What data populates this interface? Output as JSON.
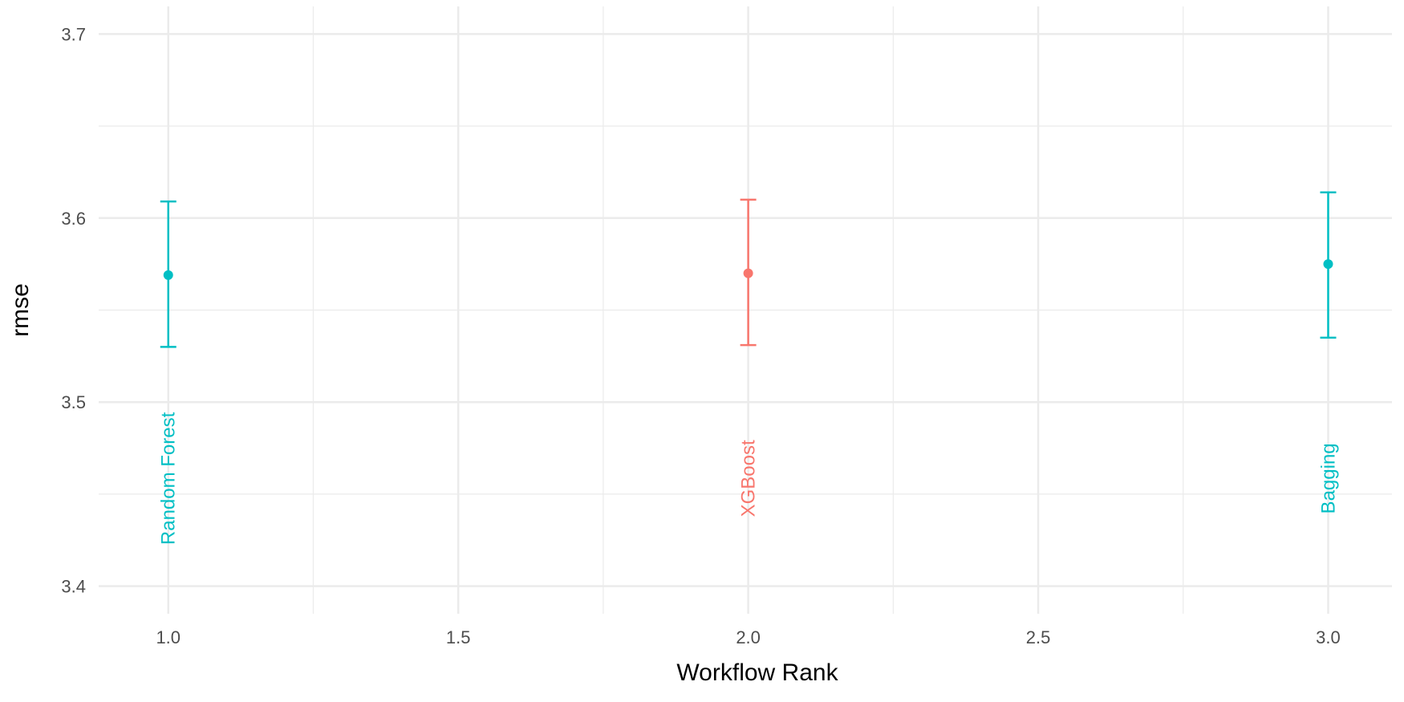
{
  "chart_data": {
    "type": "scatter",
    "xlabel": "Workflow Rank",
    "ylabel": "rmse",
    "xlim": [
      0.88,
      3.11
    ],
    "ylim": [
      3.385,
      3.715
    ],
    "x_ticks": [
      1.0,
      1.5,
      2.0,
      2.5,
      3.0
    ],
    "x_tick_labels": [
      "1.0",
      "1.5",
      "2.0",
      "2.5",
      "3.0"
    ],
    "y_ticks": [
      3.4,
      3.5,
      3.6,
      3.7
    ],
    "y_tick_labels": [
      "3.4",
      "3.5",
      "3.6",
      "3.7"
    ],
    "grid": true,
    "legend": "none",
    "colors": {
      "teal": "#00bfc4",
      "salmon": "#f8766d",
      "grid": "#ebebeb"
    },
    "points": [
      {
        "label": "Random Forest",
        "x": 1,
        "y": 3.569,
        "lower": 3.53,
        "upper": 3.609,
        "color": "#00bfc4"
      },
      {
        "label": "XGBoost",
        "x": 2,
        "y": 3.57,
        "lower": 3.531,
        "upper": 3.61,
        "color": "#f8766d"
      },
      {
        "label": "Bagging",
        "x": 3,
        "y": 3.575,
        "lower": 3.535,
        "upper": 3.614,
        "color": "#00bfc4"
      }
    ]
  }
}
